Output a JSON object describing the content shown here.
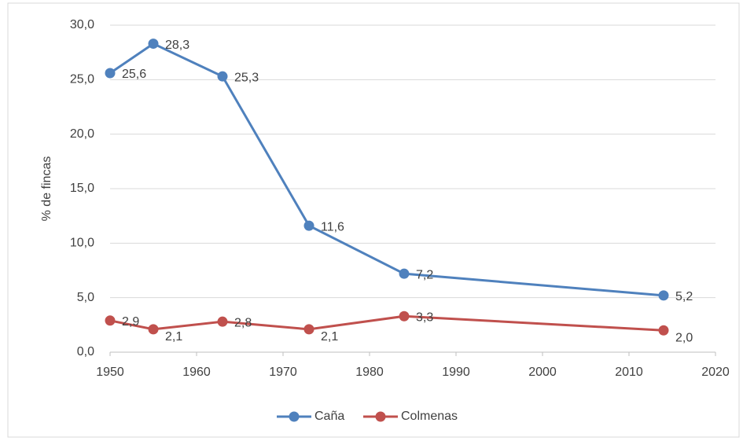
{
  "chart_data": {
    "type": "line",
    "y_label": "% de fincas",
    "x": [
      1950,
      1955,
      1963,
      1973,
      1984,
      2014
    ],
    "series": [
      {
        "name": "Caña",
        "color": "#4f81bd",
        "values": [
          25.6,
          28.3,
          25.3,
          11.6,
          7.2,
          5.2
        ],
        "value_labels": [
          "25,6",
          "28,3",
          "25,3",
          "11,6",
          "7,2",
          "5,2"
        ]
      },
      {
        "name": "Colmenas",
        "color": "#c0504d",
        "values": [
          2.9,
          2.1,
          2.8,
          2.1,
          3.3,
          2.0
        ],
        "value_labels": [
          "2,9",
          "2,1",
          "2,8",
          "2,1",
          "3,3",
          "2,0"
        ]
      }
    ],
    "xlim": [
      1950,
      2020
    ],
    "xticks": [
      1950,
      1960,
      1970,
      1980,
      1990,
      2000,
      2010,
      2020
    ],
    "ylim": [
      0,
      30
    ],
    "yticks": [
      {
        "value": 0,
        "label": "0,0"
      },
      {
        "value": 5,
        "label": "5,0"
      },
      {
        "value": 10,
        "label": "10,0"
      },
      {
        "value": 15,
        "label": "15,0"
      },
      {
        "value": 20,
        "label": "20,0"
      },
      {
        "value": 25,
        "label": "25,0"
      },
      {
        "value": 30,
        "label": "30,0"
      }
    ],
    "grid": true,
    "legend": "bottom"
  }
}
